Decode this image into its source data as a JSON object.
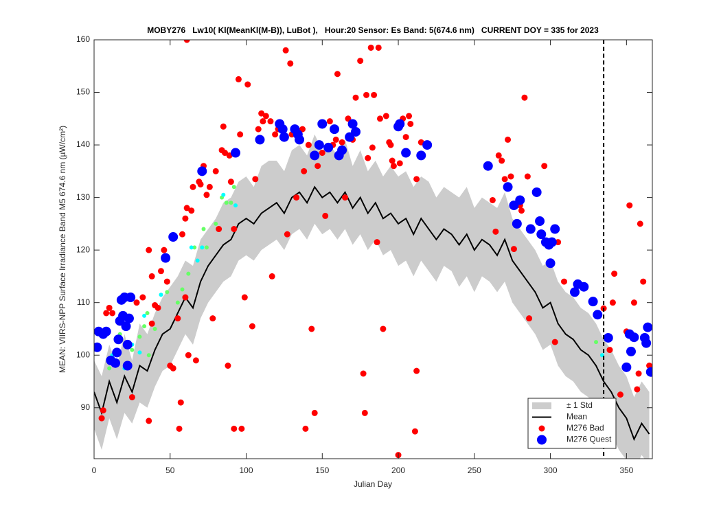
{
  "chart_data": {
    "type": "scatter",
    "title": "MOBY276   Lw10( Kl(MeanKl(M-B)), LuBot ),   Hour:20 Sensor: Es Band: 5(674.6 nm)   CURRENT DOY = 335 for 2023",
    "x_label": "Julian Day",
    "y_label": "MEAN: VIIRS-NPP Surface Irradiance Band M5 674.6 nm (µW/cm²)",
    "xlim": [
      0,
      367
    ],
    "ylim": [
      80.3,
      160
    ],
    "xticks": [
      0,
      50,
      100,
      150,
      200,
      250,
      300,
      350
    ],
    "yticks": [
      90,
      100,
      110,
      120,
      130,
      140,
      150,
      160
    ],
    "vline": 335,
    "legend": "lower right",
    "series": [
      {
        "name": "± 1 Std",
        "type": "band",
        "color": "#cccccc",
        "x": [
          0,
          5,
          10,
          15,
          20,
          25,
          30,
          35,
          40,
          45,
          50,
          55,
          60,
          65,
          70,
          75,
          80,
          85,
          90,
          95,
          100,
          105,
          110,
          115,
          120,
          125,
          130,
          135,
          140,
          145,
          150,
          155,
          160,
          165,
          170,
          175,
          180,
          185,
          190,
          195,
          200,
          205,
          210,
          215,
          220,
          225,
          230,
          235,
          240,
          245,
          250,
          255,
          260,
          265,
          270,
          275,
          280,
          285,
          290,
          295,
          300,
          305,
          310,
          315,
          320,
          325,
          330,
          335,
          340,
          345,
          350,
          355,
          360,
          365
        ],
        "upper": [
          99,
          96,
          102,
          98,
          104,
          99,
          106,
          104,
          108,
          111,
          113,
          115,
          118,
          117,
          122,
          124,
          126,
          129,
          130,
          133,
          134,
          132,
          136,
          137,
          137,
          135,
          139,
          140,
          138,
          142,
          139,
          140,
          138,
          141,
          136,
          139,
          135,
          137,
          134,
          136,
          134,
          135,
          132,
          134,
          133,
          130,
          132,
          131,
          130,
          132,
          128,
          130,
          129,
          128,
          131,
          126,
          124,
          122,
          120,
          117,
          118,
          114,
          112,
          111,
          109,
          108,
          106,
          103,
          101,
          98,
          96,
          92,
          95,
          93
        ],
        "lower": [
          86,
          82,
          88,
          84,
          89,
          87,
          91,
          90,
          94,
          97,
          98,
          101,
          104,
          102,
          107,
          110,
          112,
          114,
          115,
          118,
          119,
          118,
          120,
          121,
          122,
          120,
          123,
          124,
          122,
          125,
          123,
          124,
          122,
          124,
          121,
          123,
          120,
          122,
          119,
          120,
          117,
          118,
          115,
          118,
          116,
          114,
          117,
          116,
          113,
          115,
          112,
          115,
          114,
          112,
          114,
          110,
          108,
          106,
          104,
          101,
          102,
          98,
          96,
          95,
          93,
          92,
          90,
          87,
          85,
          82,
          80,
          78,
          81,
          79
        ]
      },
      {
        "name": "Mean",
        "type": "line",
        "color": "#000000",
        "x": [
          0,
          5,
          10,
          15,
          20,
          25,
          30,
          35,
          40,
          45,
          50,
          55,
          60,
          65,
          70,
          75,
          80,
          85,
          90,
          95,
          100,
          105,
          110,
          115,
          120,
          125,
          130,
          135,
          140,
          145,
          150,
          155,
          160,
          165,
          170,
          175,
          180,
          185,
          190,
          195,
          200,
          205,
          210,
          215,
          220,
          225,
          230,
          235,
          240,
          245,
          250,
          255,
          260,
          265,
          270,
          275,
          280,
          285,
          290,
          295,
          300,
          305,
          310,
          315,
          320,
          325,
          330,
          335,
          340,
          345,
          350,
          355,
          360,
          365
        ],
        "values": [
          93,
          89,
          95,
          91,
          96,
          93,
          98,
          97,
          101,
          104,
          105,
          108,
          111,
          109,
          114,
          117,
          119,
          121,
          122,
          125,
          126,
          125,
          127,
          128,
          129,
          127,
          130,
          131,
          129,
          132,
          130,
          131,
          129,
          131,
          128,
          130,
          127,
          129,
          126,
          127,
          125,
          126,
          123,
          126,
          124,
          122,
          124,
          123,
          121,
          123,
          120,
          122,
          121,
          119,
          122,
          118,
          116,
          114,
          112,
          109,
          110,
          106,
          104,
          103,
          101,
          100,
          98,
          95,
          93,
          90,
          88,
          84,
          87,
          85
        ]
      },
      {
        "type": "scatter",
        "color": "#66ff66",
        "size": 3,
        "x": [
          10,
          17,
          25,
          30,
          33,
          35,
          36,
          40,
          48,
          55,
          58,
          62,
          66,
          72,
          74,
          80,
          84,
          87,
          90,
          92,
          330
        ],
        "values": [
          97.5,
          104,
          101,
          103.5,
          105.5,
          108,
          100,
          105,
          112,
          110,
          112.5,
          115.5,
          120.5,
          124,
          120.5,
          125,
          130,
          129,
          129,
          132,
          102.5
        ]
      },
      {
        "type": "scatter",
        "color": "#00ffff",
        "size": 3,
        "x": [
          12,
          20,
          25,
          30,
          33,
          44,
          64,
          68,
          71,
          85,
          93,
          334
        ],
        "values": [
          100,
          97.5,
          102,
          100.5,
          107.5,
          111.5,
          120.5,
          118,
          120.5,
          130.5,
          128.5,
          100
        ]
      },
      {
        "name": "M276 Bad",
        "type": "scatter",
        "color": "#ff0000",
        "size": 4.5,
        "x": [
          5,
          6,
          8,
          10,
          12,
          25,
          28,
          32,
          36,
          36,
          38,
          38,
          40,
          42,
          44,
          46,
          48,
          50,
          52,
          55,
          56,
          57,
          58,
          60,
          60,
          61,
          61,
          62,
          64,
          65,
          67,
          69,
          70,
          72,
          74,
          76,
          78,
          80,
          82,
          84,
          85,
          86,
          88,
          89,
          90,
          92,
          92,
          95,
          96,
          97,
          99,
          101,
          104,
          106,
          108,
          110,
          111,
          113,
          116,
          117,
          119,
          121,
          124,
          126,
          127,
          129,
          130,
          133,
          135,
          137,
          138,
          139,
          141,
          143,
          145,
          147,
          150,
          152,
          155,
          157,
          159,
          160,
          163,
          165,
          167,
          170,
          172,
          175,
          177,
          178,
          179,
          180,
          182,
          183,
          184,
          186,
          187,
          188,
          190,
          192,
          194,
          195,
          196,
          197,
          200,
          201,
          203,
          205,
          207,
          208,
          211,
          212,
          212,
          215,
          262,
          264,
          266,
          268,
          270,
          272,
          274,
          276,
          280,
          281,
          283,
          285,
          286,
          296,
          303,
          305,
          309,
          335,
          339,
          341,
          342,
          346,
          350,
          352,
          355,
          357,
          358,
          359,
          361,
          365
        ],
        "values": [
          88,
          89.5,
          108,
          109,
          108,
          92,
          110,
          111,
          87.5,
          120,
          106,
          115,
          109.5,
          109,
          116,
          120,
          114,
          98,
          97.5,
          107,
          86,
          91,
          123,
          111,
          126,
          128,
          160,
          100,
          127.5,
          132,
          99,
          133,
          132.5,
          136,
          130.5,
          132,
          107,
          135,
          124,
          139,
          143.5,
          138.5,
          98,
          138,
          133,
          86,
          124,
          152.5,
          142,
          86,
          111,
          151.5,
          105.5,
          133.5,
          143,
          146,
          144.5,
          145.5,
          144.5,
          115,
          142,
          143,
          143,
          158,
          123,
          155.5,
          142,
          130,
          141,
          143,
          135,
          86,
          140,
          105,
          89,
          136,
          138.5,
          126.5,
          144.5,
          140,
          141,
          153.5,
          140.5,
          130,
          145,
          141,
          149,
          156,
          96.5,
          89,
          149.5,
          137.5,
          158.5,
          139.5,
          149.5,
          121.5,
          158.5,
          145,
          105,
          145.5,
          140.5,
          140,
          137,
          136,
          81,
          136.5,
          145,
          141.5,
          145.5,
          144,
          85.5,
          97,
          133.5,
          140.5,
          129.5,
          123.5,
          138,
          137,
          133.5,
          141,
          134,
          120.2,
          128.5,
          127.5,
          149,
          134,
          107,
          136,
          102.5,
          121.5,
          114,
          108.9,
          101,
          110,
          115.5,
          92.5,
          104.5,
          128.5,
          110,
          93.5,
          96.5,
          125,
          114,
          98
        ]
      },
      {
        "name": "M276 Quest",
        "type": "scatter",
        "color": "#0000ff",
        "size": 7,
        "x": [
          2,
          3,
          6,
          8,
          11,
          14,
          15,
          16,
          17,
          18,
          19,
          20,
          21,
          22,
          22,
          23,
          24,
          47,
          52,
          71,
          93,
          109,
          122,
          124,
          125,
          132,
          134,
          135,
          145,
          148,
          150,
          154,
          158,
          161,
          163,
          168,
          170,
          172,
          200,
          201,
          205,
          215,
          219,
          259,
          272,
          276,
          278,
          280,
          287,
          291,
          293,
          294,
          297,
          299,
          300,
          301,
          303,
          316,
          318,
          322,
          328,
          331,
          338,
          350,
          352,
          353,
          355,
          362,
          363,
          364,
          366
        ],
        "values": [
          101.5,
          104.5,
          104,
          104.5,
          99,
          98.5,
          100.5,
          103,
          106.5,
          110.5,
          107.5,
          111,
          105.5,
          102,
          98,
          107,
          111,
          118.5,
          122.5,
          135,
          138.5,
          141,
          144,
          143,
          141.5,
          143,
          142,
          141,
          138,
          140,
          144,
          139.5,
          143,
          138,
          139,
          141.5,
          144,
          142.5,
          143.5,
          144,
          138.5,
          138,
          140,
          136,
          132,
          128.5,
          125,
          129.5,
          124,
          131,
          125.5,
          123,
          121.5,
          121,
          117.5,
          121.5,
          124,
          112,
          113.5,
          113,
          110.2,
          107.7,
          103.3,
          97.7,
          104,
          100.7,
          103.4,
          103.3,
          102.3,
          105.3,
          96.8
        ]
      }
    ]
  }
}
